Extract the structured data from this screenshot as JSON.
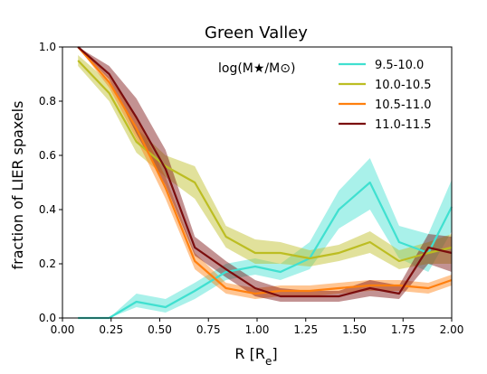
{
  "chart_data": {
    "type": "line",
    "title": "Green Valley",
    "xlabel_main": "R",
    "xlabel_unit": "R",
    "xlabel_sub": "e",
    "ylabel": "fraction of LIER spaxels",
    "legend_title": "log(M★/M⊙)",
    "legend_placement": "top-right",
    "xlim": [
      0.0,
      2.0
    ],
    "ylim": [
      0.0,
      1.0
    ],
    "xticks": [
      "0.00",
      "0.25",
      "0.50",
      "0.75",
      "1.00",
      "1.25",
      "1.50",
      "1.75",
      "2.00"
    ],
    "yticks": [
      "0.0",
      "0.2",
      "0.4",
      "0.6",
      "0.8",
      "1.0"
    ],
    "grid": false,
    "x": [
      0.08,
      0.24,
      0.38,
      0.53,
      0.68,
      0.84,
      0.99,
      1.12,
      1.27,
      1.42,
      1.58,
      1.73,
      1.88,
      2.0
    ],
    "series": [
      {
        "name": "9.5-10.0",
        "color": "#40e0d0",
        "values": [
          0.0,
          0.0,
          0.06,
          0.04,
          0.1,
          0.17,
          0.19,
          0.17,
          0.22,
          0.4,
          0.5,
          0.28,
          0.24,
          0.41
        ],
        "lower": [
          0.0,
          0.0,
          0.04,
          0.02,
          0.07,
          0.14,
          0.16,
          0.14,
          0.18,
          0.33,
          0.4,
          0.22,
          0.17,
          0.32
        ],
        "upper": [
          0.0,
          0.0,
          0.09,
          0.07,
          0.13,
          0.2,
          0.22,
          0.2,
          0.28,
          0.47,
          0.59,
          0.34,
          0.31,
          0.51
        ]
      },
      {
        "name": "10.0-10.5",
        "color": "#bcbd22",
        "values": [
          0.95,
          0.83,
          0.65,
          0.56,
          0.5,
          0.3,
          0.24,
          0.24,
          0.22,
          0.24,
          0.28,
          0.21,
          0.24,
          0.26
        ],
        "lower": [
          0.93,
          0.8,
          0.61,
          0.52,
          0.44,
          0.26,
          0.2,
          0.2,
          0.19,
          0.21,
          0.24,
          0.18,
          0.2,
          0.2
        ],
        "upper": [
          0.97,
          0.87,
          0.7,
          0.6,
          0.56,
          0.34,
          0.29,
          0.28,
          0.25,
          0.27,
          0.32,
          0.25,
          0.28,
          0.31
        ]
      },
      {
        "name": "10.5-11.0",
        "color": "#ff7f0e",
        "values": [
          1.0,
          0.87,
          0.7,
          0.48,
          0.21,
          0.11,
          0.09,
          0.1,
          0.1,
          0.11,
          0.12,
          0.12,
          0.11,
          0.14
        ],
        "lower": [
          1.0,
          0.85,
          0.66,
          0.44,
          0.18,
          0.09,
          0.07,
          0.08,
          0.08,
          0.09,
          0.1,
          0.1,
          0.09,
          0.12
        ],
        "upper": [
          1.0,
          0.89,
          0.74,
          0.52,
          0.24,
          0.13,
          0.11,
          0.12,
          0.12,
          0.13,
          0.14,
          0.14,
          0.13,
          0.16
        ]
      },
      {
        "name": "11.0-11.5",
        "color": "#7b0d0d",
        "values": [
          1.0,
          0.9,
          0.74,
          0.55,
          0.26,
          0.18,
          0.11,
          0.08,
          0.08,
          0.08,
          0.11,
          0.09,
          0.26,
          0.24
        ],
        "lower": [
          1.0,
          0.88,
          0.68,
          0.49,
          0.23,
          0.15,
          0.08,
          0.06,
          0.06,
          0.06,
          0.08,
          0.07,
          0.2,
          0.17
        ],
        "upper": [
          1.0,
          0.93,
          0.81,
          0.62,
          0.3,
          0.21,
          0.14,
          0.11,
          0.1,
          0.1,
          0.14,
          0.12,
          0.31,
          0.3
        ]
      }
    ]
  }
}
